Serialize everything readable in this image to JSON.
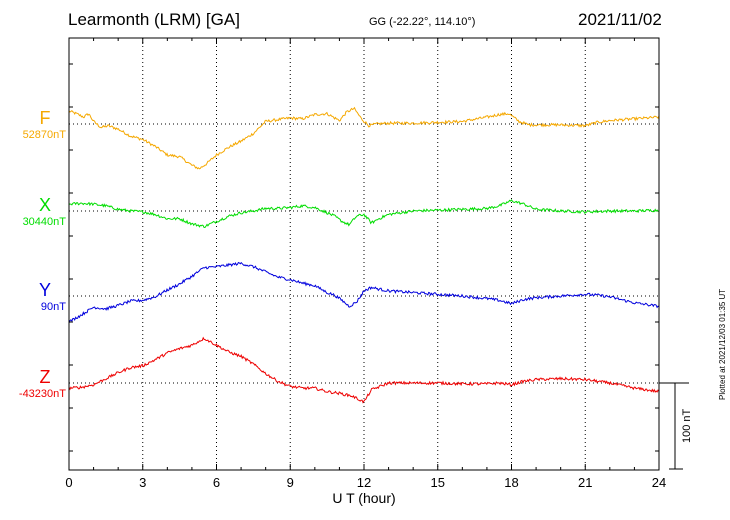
{
  "header": {
    "station": "Learmonth (LRM)  [GA]",
    "coords": "GG (-22.22°, 114.10°)",
    "date": "2021/11/02"
  },
  "plotted_note": "Plotted at 2021/12/03 01:35 UT",
  "scale_bar_label": "100 nT",
  "chart_data": {
    "type": "line",
    "xlabel": "U T (hour)",
    "xlim": [
      0,
      24
    ],
    "xticks": [
      "0",
      "3",
      "6",
      "9",
      "12",
      "15",
      "18",
      "21",
      "24"
    ],
    "y_unit": "nT",
    "scale_bar_nT": 100,
    "components": [
      {
        "name": "F",
        "baseline_label": "52870nT",
        "color": "#f5a800",
        "x": [
          0,
          0.3,
          0.6,
          0.8,
          1,
          1.3,
          1.6,
          2,
          2.5,
          3,
          3.5,
          4,
          4.5,
          5,
          5.3,
          5.6,
          6,
          6.5,
          7,
          7.5,
          8,
          8.5,
          9,
          9.5,
          10,
          10.5,
          11,
          11.3,
          11.6,
          11.9,
          12.2,
          12.5,
          13,
          14,
          15,
          16,
          17,
          17.5,
          17.9,
          18.3,
          18.7,
          19,
          20,
          21,
          21.5,
          22,
          23,
          24
        ],
        "y": [
          15,
          12,
          8,
          12,
          3,
          -4,
          -2,
          -6,
          -14,
          -18,
          -26,
          -36,
          -38,
          -48,
          -52,
          -46,
          -36,
          -27,
          -20,
          -11,
          3,
          5,
          7,
          6,
          11,
          12,
          4,
          14,
          18,
          6,
          -2,
          0,
          1,
          1,
          2,
          3,
          8,
          11,
          12,
          3,
          -1,
          -1,
          -1,
          -2,
          2,
          4,
          6,
          8
        ]
      },
      {
        "name": "X",
        "baseline_label": "30440nT",
        "color": "#00dd00",
        "x": [
          0,
          0.5,
          1,
          1.5,
          2,
          2.5,
          3,
          3.5,
          4,
          4.5,
          5,
          5.5,
          6,
          6.5,
          7,
          7.5,
          8,
          8.5,
          9,
          9.5,
          10,
          10.5,
          10.8,
          11.1,
          11.4,
          11.7,
          12,
          12.3,
          12.6,
          13,
          14,
          15,
          16,
          17,
          17.5,
          18,
          18.5,
          19,
          20,
          21,
          22,
          23,
          24
        ],
        "y": [
          8,
          9,
          8,
          6,
          2,
          0,
          -1,
          -4,
          -9,
          -9,
          -15,
          -18,
          -12,
          -6,
          -2,
          0,
          3,
          3,
          4,
          6,
          4,
          -2,
          -6,
          -12,
          -16,
          -6,
          -4,
          -14,
          -9,
          -4,
          0,
          1,
          2,
          3,
          6,
          12,
          8,
          2,
          0,
          -1,
          0,
          0,
          1
        ]
      },
      {
        "name": "Y",
        "baseline_label": "90nT",
        "color": "#0000dd",
        "x": [
          0,
          0.5,
          1,
          1.5,
          2,
          2.5,
          3,
          3.5,
          4,
          4.5,
          5,
          5.5,
          6,
          6.5,
          7,
          7.5,
          8,
          8.5,
          9,
          9.5,
          10,
          10.5,
          10.8,
          11.1,
          11.4,
          11.7,
          12,
          12.3,
          12.6,
          13,
          14,
          15,
          16,
          17,
          17.5,
          18,
          18.5,
          19,
          20,
          21,
          21.5,
          22,
          23,
          24
        ],
        "y": [
          -30,
          -22,
          -13,
          -15,
          -11,
          -6,
          -5,
          -1,
          7,
          14,
          23,
          33,
          34,
          36,
          38,
          34,
          28,
          22,
          19,
          15,
          12,
          4,
          1,
          -5,
          -12,
          -7,
          6,
          10,
          8,
          6,
          4,
          2,
          0,
          -3,
          -5,
          -9,
          -4,
          -2,
          0,
          2,
          1,
          -1,
          -8,
          -12
        ]
      },
      {
        "name": "Z",
        "baseline_label": "-43230nT",
        "color": "#ee0000",
        "x": [
          0,
          0.5,
          1,
          1.5,
          2,
          2.5,
          3,
          3.5,
          4,
          4.5,
          5,
          5.5,
          6,
          6.5,
          7,
          7.5,
          8,
          8.5,
          9,
          9.5,
          10,
          10.5,
          11,
          11.5,
          12,
          12.3,
          13,
          14,
          15,
          16,
          17,
          17.5,
          18,
          18.5,
          19,
          20,
          21,
          22,
          23,
          24
        ],
        "y": [
          -6,
          -5,
          -2,
          5,
          12,
          18,
          20,
          27,
          35,
          40,
          44,
          52,
          44,
          36,
          31,
          22,
          11,
          2,
          -4,
          -6,
          -6,
          -10,
          -12,
          -15,
          -22,
          -8,
          0,
          0,
          0,
          -1,
          -1,
          0,
          -2,
          2,
          4,
          5,
          4,
          0,
          -6,
          -10
        ]
      }
    ]
  }
}
